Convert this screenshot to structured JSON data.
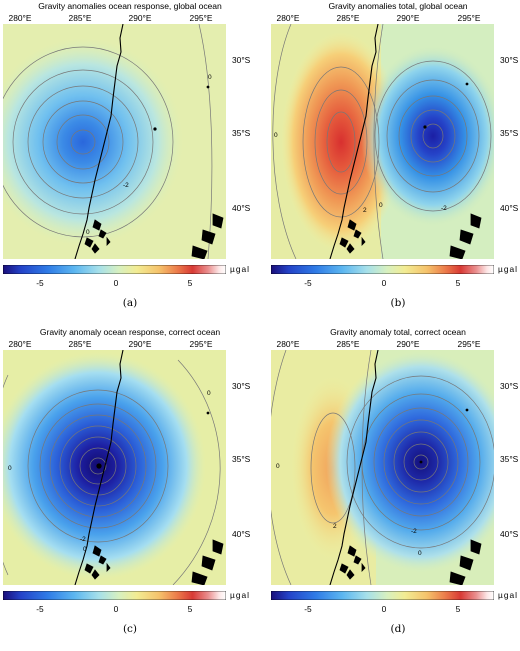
{
  "figure": {
    "longitude_ticks": [
      "280°E",
      "285°E",
      "290°E",
      "295°E"
    ],
    "latitude_ticks": [
      "30°S",
      "35°S",
      "40°S"
    ],
    "colorbar": {
      "ticks": [
        "-5",
        "0",
        "5"
      ],
      "unit": "µgal",
      "colors": [
        "#1a0e7a",
        "#2443c8",
        "#2f7be6",
        "#5cb6f0",
        "#a6e0ea",
        "#d7f0c0",
        "#f2ec93",
        "#f5c26b",
        "#ec7d4b",
        "#d83a35",
        "#ea8f8f",
        "#fde8e8",
        "#ffffff"
      ]
    },
    "contour_labels": [
      "0",
      "-2",
      "2"
    ],
    "panels": [
      {
        "title": "Gravity anomalies ocean response, global ocean",
        "caption": "(a)"
      },
      {
        "title": "Gravity anomalies total, global ocean",
        "caption": "(b)"
      },
      {
        "title": "Gravity anomaly ocean response, correct ocean",
        "caption": "(c)"
      },
      {
        "title": "Gravity anomaly total, correct ocean",
        "caption": "(d)"
      }
    ]
  }
}
